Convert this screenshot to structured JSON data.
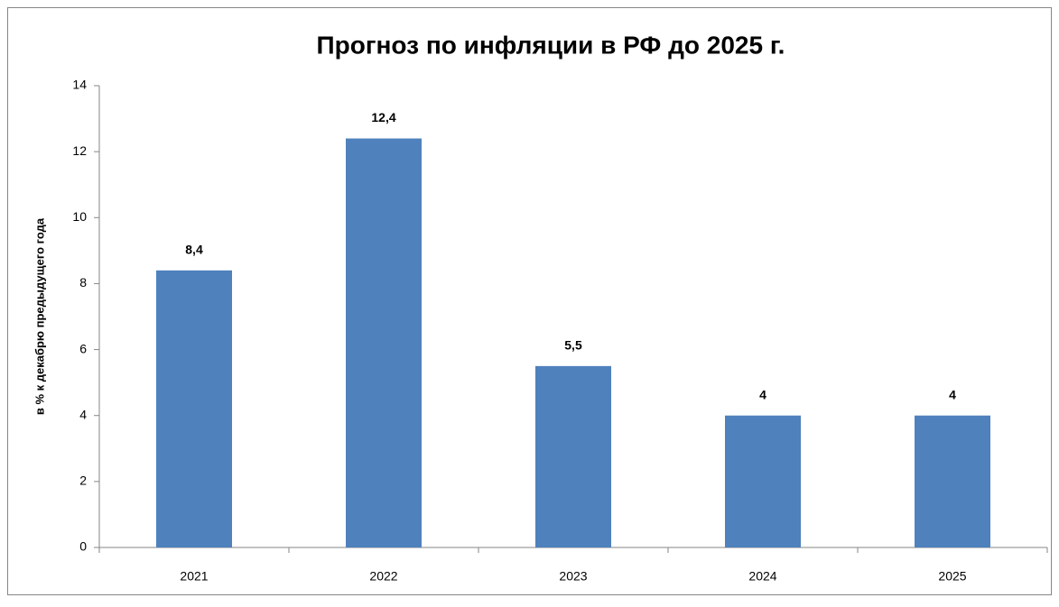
{
  "chart_data": {
    "type": "bar",
    "title": "Прогноз по инфляции в РФ до 2025 г.",
    "y_label": "в % к декабрю предыдущего года",
    "categories": [
      "2021",
      "2022",
      "2023",
      "2024",
      "2025"
    ],
    "values": [
      8.4,
      12.4,
      5.5,
      4,
      4
    ],
    "value_labels": [
      "8,4",
      "12,4",
      "5,5",
      "4",
      "4"
    ],
    "color": "#4f81bd",
    "ylim": [
      0,
      14
    ],
    "yticks": [
      0,
      2,
      4,
      6,
      8,
      10,
      12,
      14
    ],
    "grid": false
  }
}
